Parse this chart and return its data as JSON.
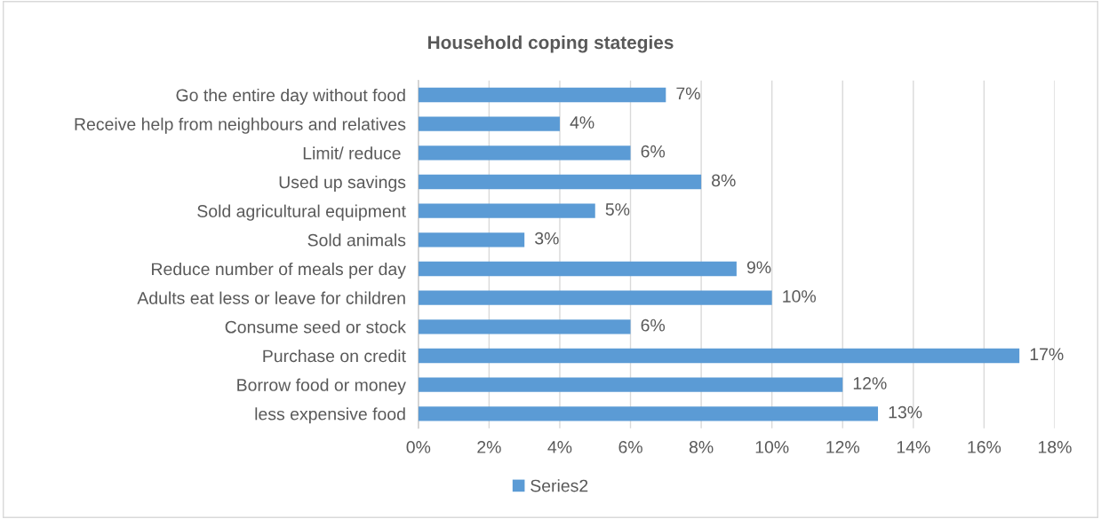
{
  "chart_data": {
    "type": "bar",
    "orientation": "horizontal",
    "title": "Household coping stategies",
    "categories": [
      "Go the entire day without food",
      "Receive help from neighbours and relatives",
      "Limit/ reduce ",
      "Used up savings",
      "Sold agricultural equipment",
      "Sold animals",
      "Reduce number of meals per day",
      "Adults eat less or leave for children",
      "Consume seed or stock",
      "Purchase on credit",
      "Borrow food or money",
      "less expensive food"
    ],
    "series": [
      {
        "name": "Series2",
        "color": "#5b9bd5",
        "values": [
          7,
          4,
          6,
          8,
          5,
          3,
          9,
          10,
          6,
          17,
          12,
          13
        ],
        "value_labels": [
          "7%",
          "4%",
          "6%",
          "8%",
          "5%",
          "3%",
          "9%",
          "10%",
          "6%",
          "17%",
          "12%",
          "13%"
        ]
      }
    ],
    "xlim": [
      0,
      18
    ],
    "xticks": [
      {
        "value": 0,
        "label": "0%"
      },
      {
        "value": 2,
        "label": "2%"
      },
      {
        "value": 4,
        "label": "4%"
      },
      {
        "value": 6,
        "label": "6%"
      },
      {
        "value": 8,
        "label": "8%"
      },
      {
        "value": 10,
        "label": "10%"
      },
      {
        "value": 12,
        "label": "12%"
      },
      {
        "value": 14,
        "label": "14%"
      },
      {
        "value": 16,
        "label": "16%"
      },
      {
        "value": 18,
        "label": "18%"
      }
    ],
    "grid": "x",
    "legend": "bottom"
  }
}
